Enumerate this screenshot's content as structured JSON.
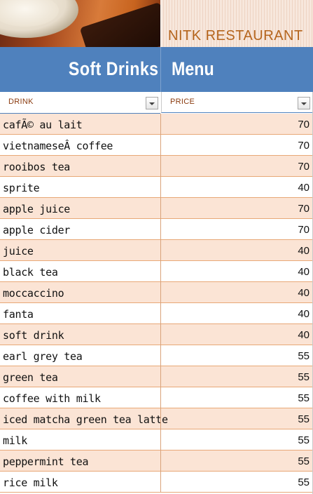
{
  "banner": {
    "restaurant_name": "NITK RESTAURANT"
  },
  "title": {
    "left": "Soft  Drinks",
    "right": "Menu"
  },
  "columns": {
    "drink_header": "DRINK",
    "price_header": "PRICE"
  },
  "colors": {
    "title_bar": "#4f81bd",
    "row_shade": "#fbe4d5",
    "row_border": "#e8a877",
    "header_text": "#8a3b0f",
    "restaurant_text": "#b5651d"
  },
  "rows": [
    {
      "drink": "cafÃ© au lait",
      "price": "70"
    },
    {
      "drink": "vietnameseÂ coffee",
      "price": "70"
    },
    {
      "drink": "rooibos tea",
      "price": "70"
    },
    {
      "drink": "sprite",
      "price": "40"
    },
    {
      "drink": "apple juice",
      "price": "70"
    },
    {
      "drink": "apple cider",
      "price": "70"
    },
    {
      "drink": "juice",
      "price": "40"
    },
    {
      "drink": "black tea",
      "price": "40"
    },
    {
      "drink": "moccaccino",
      "price": "40"
    },
    {
      "drink": "fanta",
      "price": "40"
    },
    {
      "drink": "soft drink",
      "price": "40"
    },
    {
      "drink": "earl grey tea",
      "price": "55"
    },
    {
      "drink": "green tea",
      "price": "55"
    },
    {
      "drink": "coffee with milk",
      "price": "55"
    },
    {
      "drink": "iced matcha green tea latte",
      "price": "55"
    },
    {
      "drink": "milk",
      "price": "55"
    },
    {
      "drink": "peppermint tea",
      "price": "55"
    },
    {
      "drink": "rice milk",
      "price": "55"
    }
  ]
}
